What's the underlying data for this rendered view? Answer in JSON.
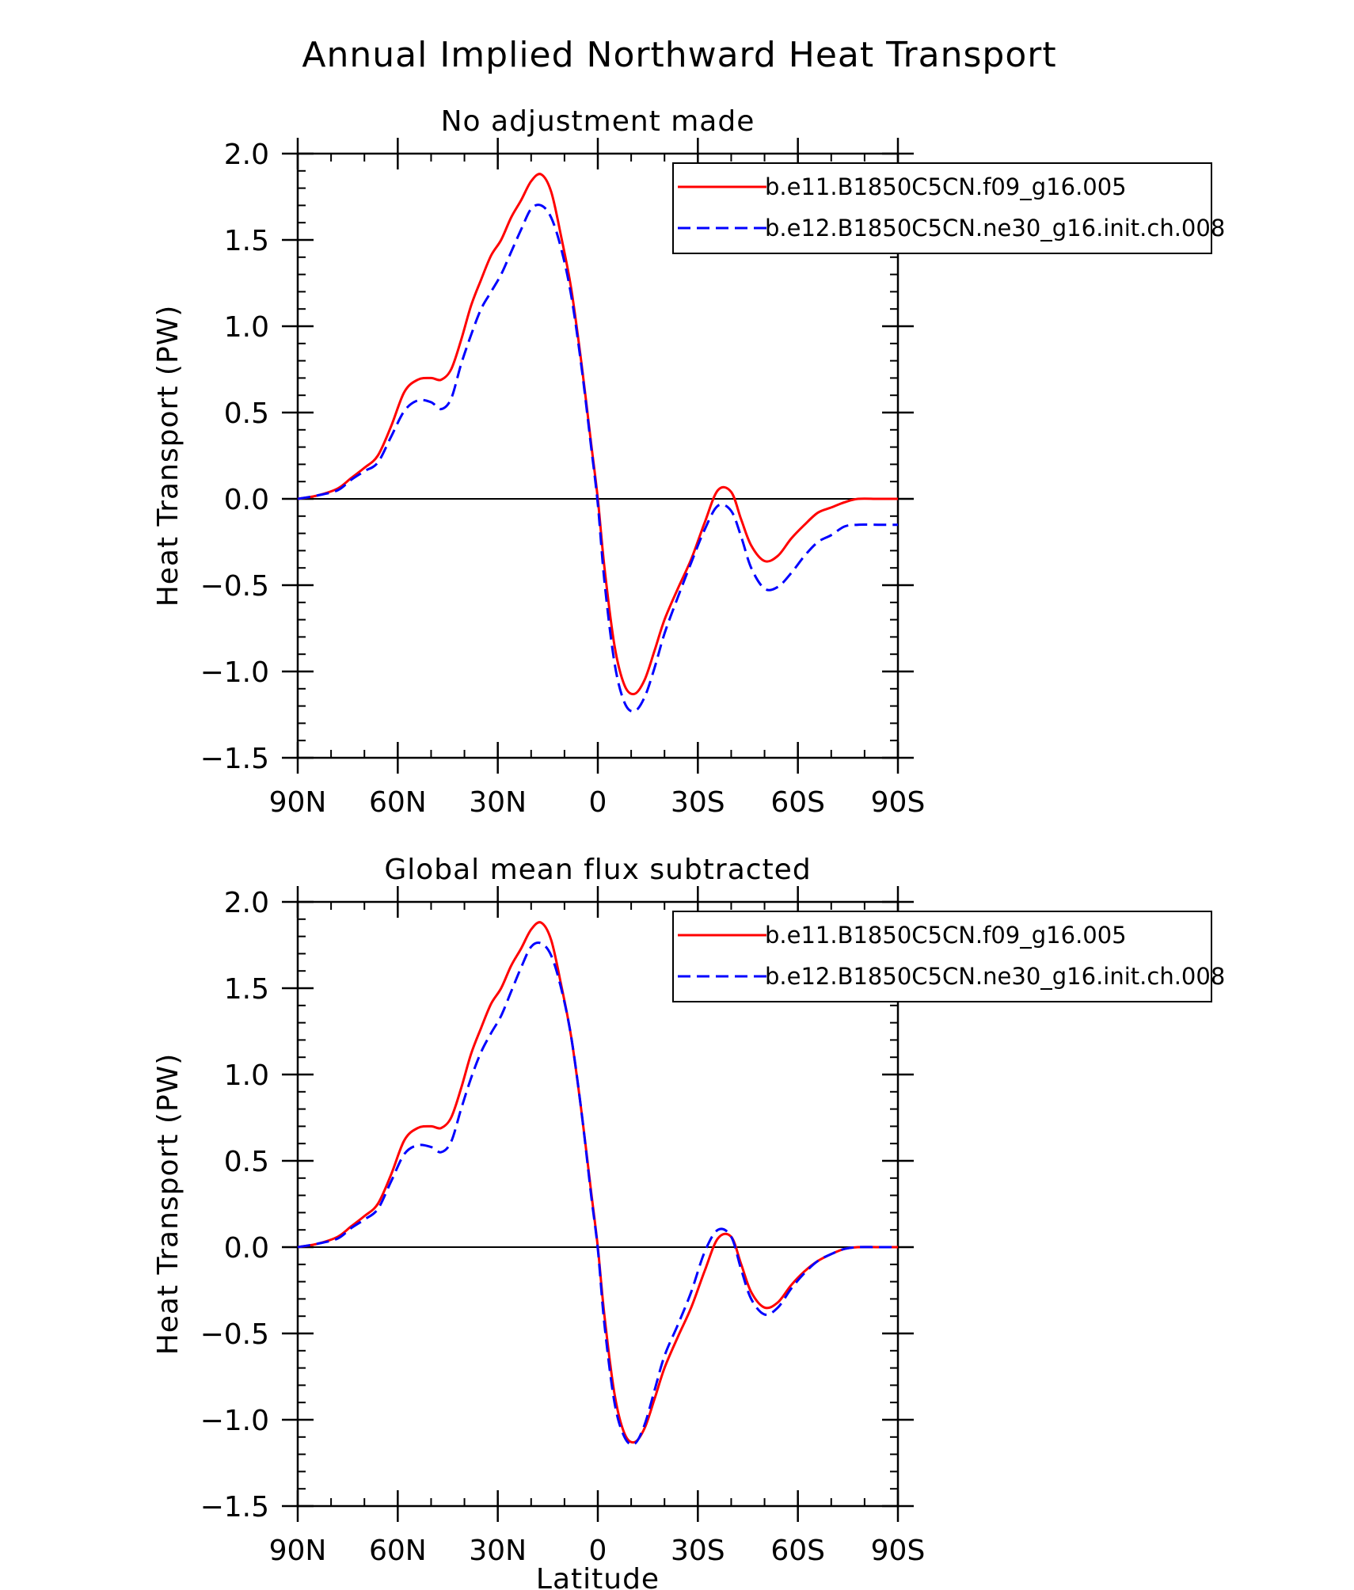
{
  "title": "Annual Implied Northward Heat Transport",
  "colors": {
    "series_1": "#ff0000",
    "series_2": "#0000ff",
    "axes": "#000000"
  },
  "chart_data": [
    {
      "type": "line",
      "title": "No adjustment made",
      "xlabel": "",
      "ylabel": "Heat Transport (PW)",
      "x_ticks": [
        {
          "value": 90,
          "label": "90N"
        },
        {
          "value": 60,
          "label": "60N"
        },
        {
          "value": 30,
          "label": "30N"
        },
        {
          "value": 0,
          "label": "0"
        },
        {
          "value": -30,
          "label": "30S"
        },
        {
          "value": -60,
          "label": "60S"
        },
        {
          "value": -90,
          "label": "90S"
        }
      ],
      "y_ticks": [
        {
          "value": 2.0,
          "label": "2.0"
        },
        {
          "value": 1.5,
          "label": "1.5"
        },
        {
          "value": 1.0,
          "label": "1.0"
        },
        {
          "value": 0.5,
          "label": "0.5"
        },
        {
          "value": 0.0,
          "label": "0.0"
        },
        {
          "value": -0.5,
          "label": "−0.5"
        },
        {
          "value": -1.0,
          "label": "−1.0"
        },
        {
          "value": -1.5,
          "label": "−1.5"
        }
      ],
      "xlim": [
        90,
        -90
      ],
      "ylim": [
        -1.5,
        2.0
      ],
      "zero_line": true,
      "legend_position": "top-right",
      "series": [
        {
          "name": "b.e11.B1850C5CN.f09_g16.005",
          "color": "#ff0000",
          "style": "solid",
          "x": [
            90,
            84,
            78,
            74,
            70,
            66,
            62,
            58,
            54,
            50,
            47,
            44,
            41,
            38,
            35,
            32,
            29,
            26,
            23,
            20,
            17,
            14,
            11,
            8,
            5,
            2,
            0,
            -2,
            -5,
            -8,
            -11,
            -14,
            -17,
            -20,
            -24,
            -28,
            -32,
            -36,
            -40,
            -43,
            -46,
            -50,
            -54,
            -58,
            -62,
            -66,
            -70,
            -74,
            -78,
            -84,
            -90
          ],
          "y": [
            0.0,
            0.02,
            0.06,
            0.12,
            0.18,
            0.25,
            0.42,
            0.62,
            0.69,
            0.7,
            0.69,
            0.75,
            0.92,
            1.12,
            1.27,
            1.41,
            1.5,
            1.63,
            1.73,
            1.84,
            1.88,
            1.78,
            1.52,
            1.22,
            0.8,
            0.32,
            0.0,
            -0.4,
            -0.85,
            -1.08,
            -1.13,
            -1.05,
            -0.88,
            -0.7,
            -0.52,
            -0.35,
            -0.14,
            0.05,
            0.04,
            -0.12,
            -0.27,
            -0.36,
            -0.33,
            -0.23,
            -0.15,
            -0.08,
            -0.05,
            -0.02,
            0.0,
            0.0,
            0.0
          ]
        },
        {
          "name": "b.e12.B1850C5CN.ne30_g16.init.ch.008",
          "color": "#0000ff",
          "style": "dashed",
          "x": [
            90,
            84,
            78,
            74,
            70,
            66,
            62,
            58,
            54,
            50,
            47,
            44,
            41,
            38,
            35,
            32,
            29,
            26,
            23,
            20,
            17,
            14,
            11,
            8,
            5,
            2,
            0,
            -2,
            -5,
            -8,
            -11,
            -14,
            -17,
            -20,
            -24,
            -28,
            -32,
            -36,
            -40,
            -43,
            -46,
            -50,
            -54,
            -58,
            -62,
            -66,
            -70,
            -74,
            -78,
            -84,
            -90
          ],
          "y": [
            0.0,
            0.02,
            0.05,
            0.11,
            0.16,
            0.21,
            0.36,
            0.51,
            0.57,
            0.56,
            0.52,
            0.58,
            0.78,
            0.95,
            1.1,
            1.2,
            1.3,
            1.43,
            1.56,
            1.68,
            1.7,
            1.63,
            1.45,
            1.18,
            0.78,
            0.3,
            -0.03,
            -0.48,
            -0.95,
            -1.18,
            -1.23,
            -1.15,
            -0.98,
            -0.78,
            -0.57,
            -0.37,
            -0.18,
            -0.04,
            -0.07,
            -0.22,
            -0.4,
            -0.52,
            -0.51,
            -0.43,
            -0.33,
            -0.25,
            -0.21,
            -0.16,
            -0.15,
            -0.15,
            -0.15
          ]
        }
      ]
    },
    {
      "type": "line",
      "title": "Global mean flux subtracted",
      "xlabel": "Latitude",
      "ylabel": "Heat Transport (PW)",
      "x_ticks": [
        {
          "value": 90,
          "label": "90N"
        },
        {
          "value": 60,
          "label": "60N"
        },
        {
          "value": 30,
          "label": "30N"
        },
        {
          "value": 0,
          "label": "0"
        },
        {
          "value": -30,
          "label": "30S"
        },
        {
          "value": -60,
          "label": "60S"
        },
        {
          "value": -90,
          "label": "90S"
        }
      ],
      "y_ticks": [
        {
          "value": 2.0,
          "label": "2.0"
        },
        {
          "value": 1.5,
          "label": "1.5"
        },
        {
          "value": 1.0,
          "label": "1.0"
        },
        {
          "value": 0.5,
          "label": "0.5"
        },
        {
          "value": 0.0,
          "label": "0.0"
        },
        {
          "value": -0.5,
          "label": "−0.5"
        },
        {
          "value": -1.0,
          "label": "−1.0"
        },
        {
          "value": -1.5,
          "label": "−1.5"
        }
      ],
      "xlim": [
        90,
        -90
      ],
      "ylim": [
        -1.5,
        2.0
      ],
      "zero_line": true,
      "legend_position": "top-right",
      "series": [
        {
          "name": "b.e11.B1850C5CN.f09_g16.005",
          "color": "#ff0000",
          "style": "solid",
          "x": [
            90,
            84,
            78,
            74,
            70,
            66,
            62,
            58,
            54,
            50,
            47,
            44,
            41,
            38,
            35,
            32,
            29,
            26,
            23,
            20,
            17,
            14,
            11,
            8,
            5,
            2,
            0,
            -2,
            -5,
            -8,
            -11,
            -14,
            -17,
            -20,
            -24,
            -28,
            -32,
            -36,
            -40,
            -43,
            -46,
            -50,
            -54,
            -58,
            -62,
            -66,
            -70,
            -74,
            -78,
            -84,
            -90
          ],
          "y": [
            0.0,
            0.02,
            0.06,
            0.12,
            0.18,
            0.25,
            0.42,
            0.62,
            0.69,
            0.7,
            0.69,
            0.75,
            0.92,
            1.12,
            1.27,
            1.41,
            1.5,
            1.63,
            1.73,
            1.84,
            1.88,
            1.78,
            1.52,
            1.22,
            0.8,
            0.32,
            0.0,
            -0.4,
            -0.85,
            -1.08,
            -1.13,
            -1.05,
            -0.88,
            -0.7,
            -0.52,
            -0.35,
            -0.14,
            0.05,
            0.06,
            -0.1,
            -0.26,
            -0.35,
            -0.32,
            -0.22,
            -0.14,
            -0.08,
            -0.04,
            -0.01,
            0.0,
            0.0,
            0.0
          ]
        },
        {
          "name": "b.e12.B1850C5CN.ne30_g16.init.ch.008",
          "color": "#0000ff",
          "style": "dashed",
          "x": [
            90,
            84,
            78,
            74,
            70,
            66,
            62,
            58,
            54,
            50,
            47,
            44,
            41,
            38,
            35,
            32,
            29,
            26,
            23,
            20,
            17,
            14,
            11,
            8,
            5,
            2,
            0,
            -2,
            -5,
            -8,
            -11,
            -14,
            -17,
            -20,
            -24,
            -28,
            -32,
            -36,
            -40,
            -43,
            -46,
            -50,
            -54,
            -58,
            -62,
            -66,
            -70,
            -74,
            -78,
            -84,
            -90
          ],
          "y": [
            0.0,
            0.02,
            0.05,
            0.11,
            0.16,
            0.22,
            0.38,
            0.54,
            0.59,
            0.58,
            0.55,
            0.61,
            0.8,
            0.98,
            1.13,
            1.24,
            1.34,
            1.48,
            1.62,
            1.74,
            1.76,
            1.69,
            1.5,
            1.22,
            0.8,
            0.3,
            -0.01,
            -0.45,
            -0.9,
            -1.1,
            -1.14,
            -1.03,
            -0.83,
            -0.63,
            -0.45,
            -0.26,
            -0.03,
            0.1,
            0.06,
            -0.13,
            -0.3,
            -0.39,
            -0.35,
            -0.24,
            -0.15,
            -0.08,
            -0.04,
            -0.01,
            0.0,
            0.0,
            0.0
          ]
        }
      ]
    }
  ]
}
